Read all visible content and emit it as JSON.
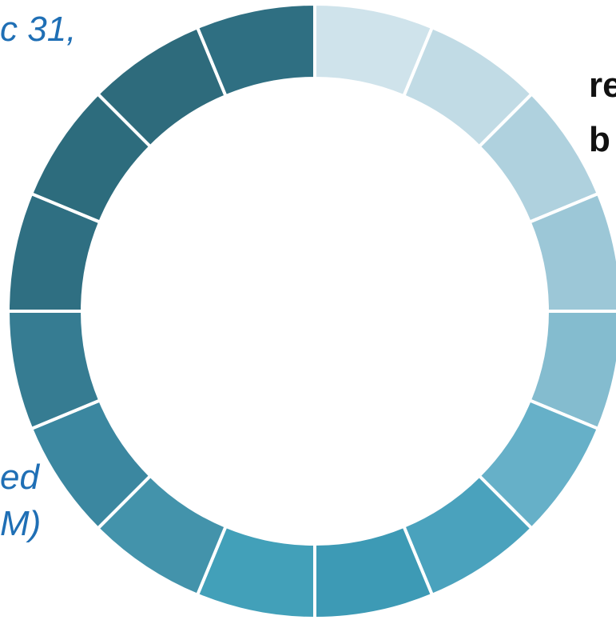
{
  "fragments": {
    "top_left": "c 31,",
    "bottom_left_line1": "ed",
    "bottom_left_line2": "M)",
    "right_line1": "re",
    "right_line2": "b"
  },
  "ring": {
    "segment_count": 16,
    "segment_colors": [
      "#cfe3eb",
      "#c1dbe5",
      "#afd1de",
      "#9cc7d7",
      "#84bccf",
      "#66b0c8",
      "#4aa2bd",
      "#3d9ab5",
      "#42a0b9",
      "#4393ab",
      "#3b87a0",
      "#367c92",
      "#2f6f82",
      "#2d6c7d",
      "#2e6b7c",
      "#2f6f82"
    ],
    "separator_color": "#ffffff"
  }
}
